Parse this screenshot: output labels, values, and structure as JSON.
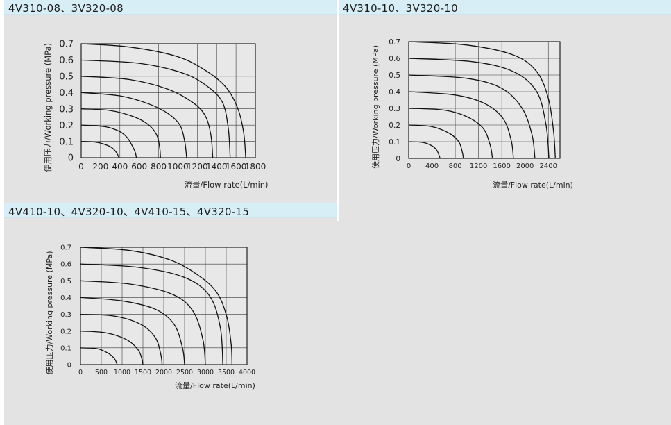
{
  "colors": {
    "panel_bg": "#e3e3e3",
    "header_bg": "#d8eef7",
    "line": "#111111",
    "grid": "#333333"
  },
  "panels": [
    {
      "title": "4V310-08、3V320-08"
    },
    {
      "title": "4V310-10、3V320-10"
    },
    {
      "title": "4V410-10、4V320-10、4V410-15、4V320-15"
    }
  ],
  "chart_data": [
    {
      "type": "line",
      "title": "4V310-08、3V320-08",
      "xlabel": "流量/Flow rate(L/min)",
      "ylabel": "使用压力/Working pressure (MPa)",
      "xlim": [
        0,
        1800
      ],
      "ylim": [
        0,
        0.7
      ],
      "xticks": [
        0,
        200,
        400,
        600,
        800,
        1000,
        1200,
        1400,
        1600,
        1800
      ],
      "yticks": [
        0,
        0.1,
        0.2,
        0.3,
        0.4,
        0.5,
        0.6,
        0.7
      ],
      "xtick_labels": [
        "0",
        "200",
        "400",
        "600",
        "800",
        "1000",
        "1200",
        "1400",
        "1600",
        "1800"
      ],
      "ytick_labels": [
        "0",
        "0.1",
        "0.2",
        "0.3",
        "0.4",
        "0.5",
        "0.6",
        "0.7"
      ],
      "grid": true,
      "series": [
        {
          "x": [
            0,
            150,
            250,
            320,
            360,
            380,
            390
          ],
          "y": [
            0.1,
            0.095,
            0.08,
            0.06,
            0.035,
            0.015,
            0
          ]
        },
        {
          "x": [
            0,
            250,
            400,
            480,
            530,
            560,
            570
          ],
          "y": [
            0.2,
            0.19,
            0.16,
            0.12,
            0.07,
            0.03,
            0
          ]
        },
        {
          "x": [
            0,
            300,
            550,
            700,
            780,
            810,
            820
          ],
          "y": [
            0.3,
            0.29,
            0.25,
            0.2,
            0.14,
            0.07,
            0
          ]
        },
        {
          "x": [
            0,
            400,
            700,
            900,
            1020,
            1070,
            1090
          ],
          "y": [
            0.4,
            0.38,
            0.33,
            0.27,
            0.2,
            0.1,
            0
          ]
        },
        {
          "x": [
            0,
            500,
            900,
            1150,
            1280,
            1340,
            1360
          ],
          "y": [
            0.5,
            0.48,
            0.42,
            0.34,
            0.26,
            0.14,
            0
          ]
        },
        {
          "x": [
            0,
            600,
            1050,
            1300,
            1460,
            1520,
            1540
          ],
          "y": [
            0.6,
            0.58,
            0.52,
            0.44,
            0.34,
            0.18,
            0
          ]
        },
        {
          "x": [
            0,
            500,
            1000,
            1300,
            1500,
            1620,
            1680,
            1700
          ],
          "y": [
            0.7,
            0.68,
            0.62,
            0.53,
            0.43,
            0.3,
            0.15,
            0
          ]
        }
      ]
    },
    {
      "type": "line",
      "title": "4V310-10、3V320-10",
      "xlabel": "流量/Flow rate(L/min)",
      "ylabel": "使用压力/Working pressure (MPa)",
      "xlim": [
        0,
        2600
      ],
      "ylim": [
        0,
        0.7
      ],
      "xticks": [
        0,
        400,
        800,
        1200,
        1600,
        2000,
        2400
      ],
      "yticks": [
        0,
        0.1,
        0.2,
        0.3,
        0.4,
        0.5,
        0.6,
        0.7
      ],
      "xtick_labels": [
        "0",
        "400",
        "800",
        "1200",
        "1600",
        "2000",
        "2400"
      ],
      "ytick_labels": [
        "0",
        "0.1",
        "0.2",
        "0.3",
        "0.4",
        "0.5",
        "0.6",
        "0.7"
      ],
      "grid": true,
      "series": [
        {
          "x": [
            0,
            250,
            400,
            480,
            520,
            540
          ],
          "y": [
            0.1,
            0.095,
            0.075,
            0.05,
            0.02,
            0
          ]
        },
        {
          "x": [
            0,
            400,
            700,
            860,
            920,
            940
          ],
          "y": [
            0.2,
            0.19,
            0.15,
            0.1,
            0.04,
            0
          ]
        },
        {
          "x": [
            0,
            600,
            1000,
            1280,
            1400,
            1440
          ],
          "y": [
            0.3,
            0.29,
            0.25,
            0.18,
            0.08,
            0
          ]
        },
        {
          "x": [
            0,
            800,
            1300,
            1620,
            1760,
            1800
          ],
          "y": [
            0.4,
            0.38,
            0.33,
            0.24,
            0.11,
            0
          ]
        },
        {
          "x": [
            0,
            1000,
            1600,
            1950,
            2120,
            2170
          ],
          "y": [
            0.5,
            0.48,
            0.42,
            0.3,
            0.14,
            0
          ]
        },
        {
          "x": [
            0,
            1100,
            1800,
            2200,
            2360,
            2410
          ],
          "y": [
            0.6,
            0.58,
            0.52,
            0.4,
            0.2,
            0
          ]
        },
        {
          "x": [
            0,
            1000,
            1800,
            2200,
            2400,
            2490,
            2520
          ],
          "y": [
            0.7,
            0.68,
            0.62,
            0.52,
            0.36,
            0.16,
            0
          ]
        }
      ]
    },
    {
      "type": "line",
      "title": "4V410-10、4V320-10、4V410-15、4V320-15",
      "xlabel": "流量/Flow rate(L/min)",
      "ylabel": "使用压力/Working pressure (MPa)",
      "xlim": [
        0,
        4000
      ],
      "ylim": [
        0,
        0.7
      ],
      "xticks": [
        0,
        500,
        1000,
        1500,
        2000,
        2500,
        3000,
        3500,
        4000
      ],
      "yticks": [
        0,
        0.1,
        0.2,
        0.3,
        0.4,
        0.5,
        0.6,
        0.7
      ],
      "xtick_labels": [
        "0",
        "500",
        "1000",
        "1500",
        "2000",
        "2500",
        "3000",
        "3500",
        "4000"
      ],
      "ytick_labels": [
        "0",
        "0.1",
        "0.2",
        "0.3",
        "0.4",
        "0.5",
        "0.6",
        "0.7"
      ],
      "grid": true,
      "series": [
        {
          "x": [
            0,
            400,
            650,
            800,
            860,
            880
          ],
          "y": [
            0.1,
            0.095,
            0.07,
            0.04,
            0.015,
            0
          ]
        },
        {
          "x": [
            0,
            600,
            1100,
            1380,
            1480,
            1500
          ],
          "y": [
            0.2,
            0.19,
            0.15,
            0.09,
            0.03,
            0
          ]
        },
        {
          "x": [
            0,
            800,
            1450,
            1800,
            1930,
            1960
          ],
          "y": [
            0.3,
            0.29,
            0.24,
            0.16,
            0.06,
            0
          ]
        },
        {
          "x": [
            0,
            1000,
            1800,
            2250,
            2450,
            2500
          ],
          "y": [
            0.4,
            0.38,
            0.33,
            0.24,
            0.1,
            0
          ]
        },
        {
          "x": [
            0,
            1200,
            2200,
            2700,
            2940,
            3000
          ],
          "y": [
            0.5,
            0.48,
            0.42,
            0.32,
            0.15,
            0
          ]
        },
        {
          "x": [
            0,
            1400,
            2500,
            3100,
            3360,
            3420
          ],
          "y": [
            0.6,
            0.58,
            0.52,
            0.41,
            0.22,
            0
          ]
        },
        {
          "x": [
            0,
            1200,
            2200,
            2900,
            3300,
            3520,
            3620,
            3640
          ],
          "y": [
            0.7,
            0.68,
            0.62,
            0.52,
            0.42,
            0.28,
            0.12,
            0
          ]
        }
      ]
    }
  ]
}
